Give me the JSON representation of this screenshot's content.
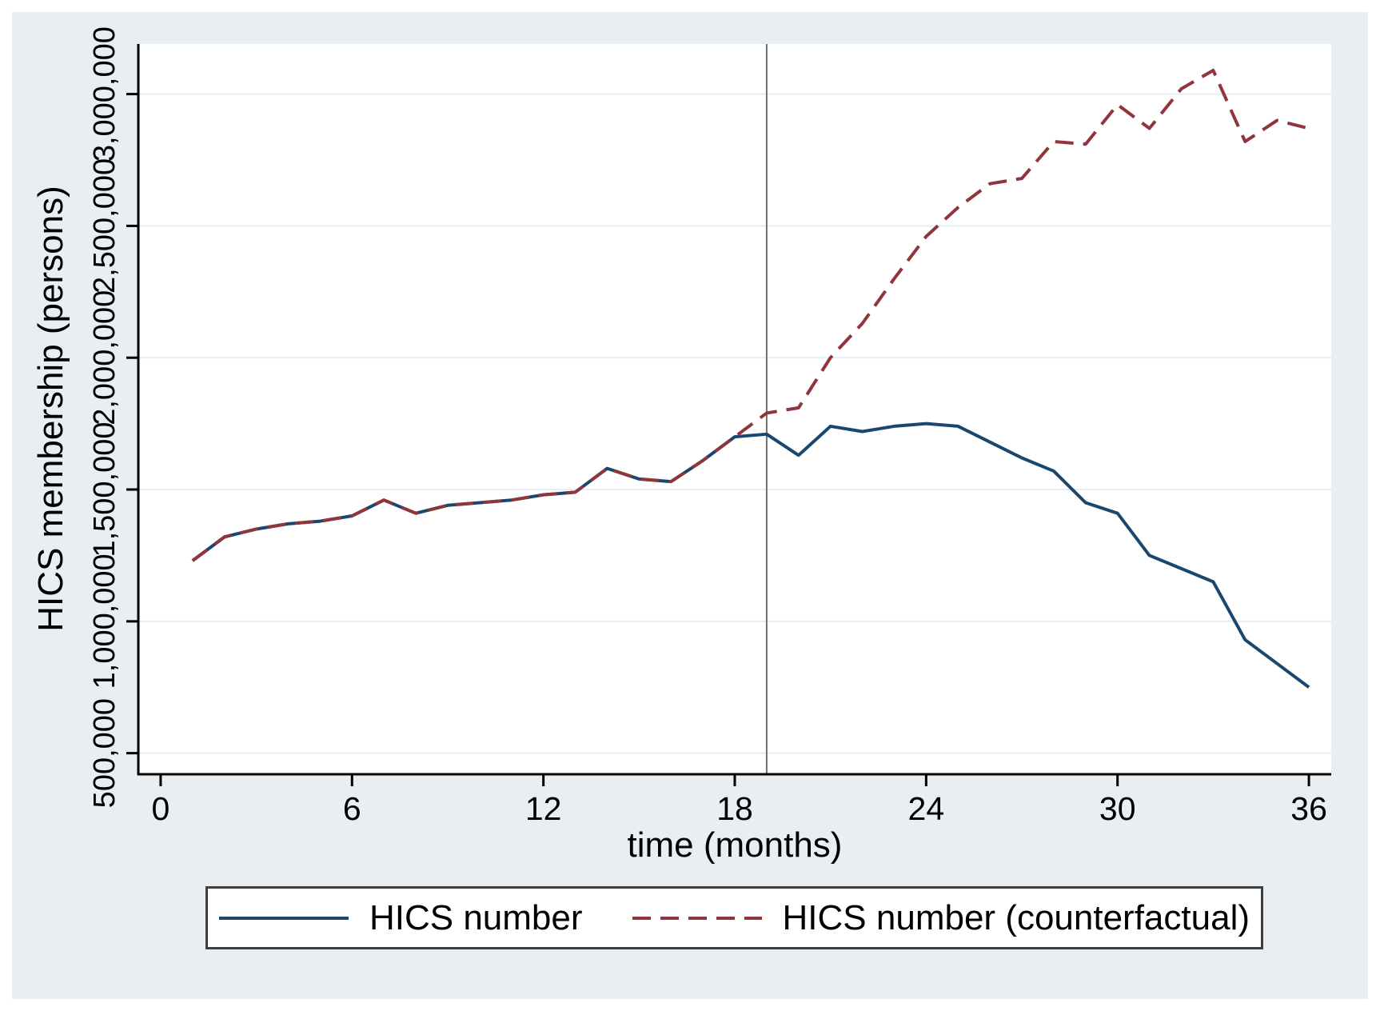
{
  "colors": {
    "canvas_background": "#e8eef1",
    "plot_background": "#ffffff",
    "gridline": "#e4eef3",
    "axis": "#000000",
    "reference_line": "#6f6f6f",
    "legend_border": "#3f3f3f",
    "legend_background": "#ffffff",
    "text": "#000000"
  },
  "chart_data": {
    "type": "line",
    "title": "",
    "xlabel": "time (months)",
    "ylabel": "HICS membership (persons)",
    "grid": "horizontal",
    "legend_position": "bottom",
    "xlim": [
      -0.7,
      36.7
    ],
    "ylim": [
      420000,
      3190000
    ],
    "vline_x": 19,
    "x_ticks": [
      {
        "value": 0,
        "label": "0"
      },
      {
        "value": 6,
        "label": "6"
      },
      {
        "value": 12,
        "label": "12"
      },
      {
        "value": 18,
        "label": "18"
      },
      {
        "value": 24,
        "label": "24"
      },
      {
        "value": 30,
        "label": "30"
      },
      {
        "value": 36,
        "label": "36"
      }
    ],
    "y_ticks": [
      {
        "value": 500000,
        "label": "500,000"
      },
      {
        "value": 1000000,
        "label": "1,000,000"
      },
      {
        "value": 1500000,
        "label": "1,500,000"
      },
      {
        "value": 2000000,
        "label": "2,000,000"
      },
      {
        "value": 2500000,
        "label": "2,500,000"
      },
      {
        "value": 3000000,
        "label": "3,000,000"
      }
    ],
    "x": [
      1,
      2,
      3,
      4,
      5,
      6,
      7,
      8,
      9,
      10,
      11,
      12,
      13,
      14,
      15,
      16,
      17,
      18,
      19,
      20,
      21,
      22,
      23,
      24,
      25,
      26,
      27,
      28,
      29,
      30,
      31,
      32,
      33,
      34,
      35,
      36
    ],
    "series": [
      {
        "name": "HICS number",
        "line_style": "solid",
        "color": "#1a476f",
        "values": [
          1230000,
          1320000,
          1350000,
          1370000,
          1380000,
          1400000,
          1460000,
          1410000,
          1440000,
          1450000,
          1460000,
          1480000,
          1490000,
          1580000,
          1540000,
          1530000,
          1610000,
          1700000,
          1710000,
          1630000,
          1740000,
          1720000,
          1740000,
          1750000,
          1740000,
          1680000,
          1620000,
          1570000,
          1450000,
          1410000,
          1250000,
          1200000,
          1150000,
          930000,
          840000,
          750000
        ]
      },
      {
        "name": "HICS number (counterfactual)",
        "line_style": "dashed",
        "color": "#90353b",
        "values": [
          1230000,
          1320000,
          1350000,
          1370000,
          1380000,
          1400000,
          1460000,
          1410000,
          1440000,
          1450000,
          1460000,
          1480000,
          1490000,
          1580000,
          1540000,
          1530000,
          1610000,
          1700000,
          1790000,
          1810000,
          2000000,
          2130000,
          2300000,
          2460000,
          2570000,
          2660000,
          2680000,
          2820000,
          2810000,
          2960000,
          2870000,
          3020000,
          3090000,
          2820000,
          2900000,
          2870000
        ]
      }
    ]
  }
}
